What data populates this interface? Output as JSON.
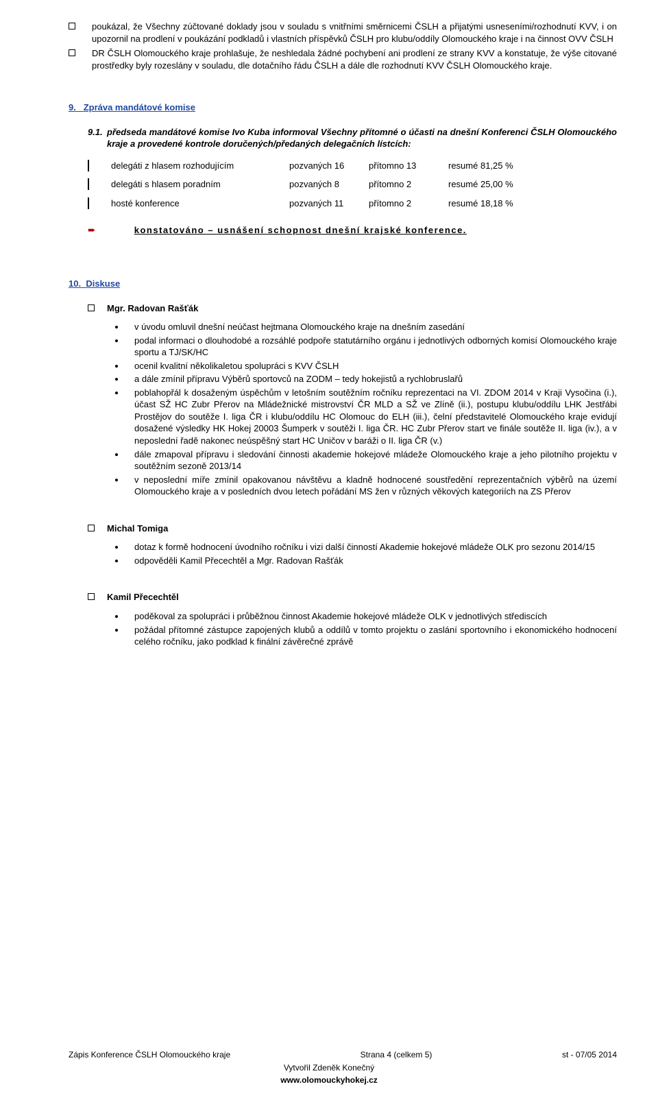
{
  "top_items": [
    "poukázal, že Všechny zúčtované doklady jsou v souladu s vnitřními směrnicemi ČSLH a přijatými usneseními/rozhodnutí KVV, i on upozornil na prodlení v poukázání podkladů i vlastních příspěvků ČSLH pro klubu/oddíly Olomouckého kraje i na činnost OVV ČSLH",
    "DR ČSLH Olomouckého kraje prohlašuje, že neshledala žádné pochybení ani prodlení ze strany KVV a konstatuje, že výše citované prostředky byly rozeslány v souladu, dle dotačního řádu ČSLH a dále dle rozhodnutí KVV ČSLH Olomouckého kraje."
  ],
  "section9": {
    "number": "9.",
    "title": "Zpráva mandátové komise",
    "item_number": "9.1.",
    "item_text": "předseda mandátové komise Ivo Kuba informoval Všechny přítomné o účasti na dnešní Konferenci ČSLH Olomouckého kraje a provedené kontrole doručených/předaných delegačních lístcích:",
    "rows": [
      {
        "label": "delegáti z hlasem rozhodujícím",
        "pozvanych": "pozvaných 16",
        "pritomno": "přítomno 13",
        "resume": "resumé  81,25 %"
      },
      {
        "label": "delegáti s hlasem poradním",
        "pozvanych": "pozvaných 8",
        "pritomno": "přítomno 2",
        "resume": "resumé 25,00 %"
      },
      {
        "label": "hosté konference",
        "pozvanych": "pozvaných 11",
        "pritomno": "přítomno 2",
        "resume": "resumé 18,18 %"
      }
    ],
    "arrow_text": "konstatováno – usnášení schopnost dnešní krajské konference."
  },
  "section10": {
    "number": "10.",
    "title": "Diskuse",
    "blocks": [
      {
        "name": "Mgr. Radovan Rašťák",
        "bullets": [
          "v úvodu omluvil dnešní neúčast hejtmana Olomouckého kraje na dnešním zasedání",
          "podal informaci o dlouhodobé a rozsáhlé podpoře statutárního orgánu i jednotlivých odborných komisí Olomouckého kraje sportu a TJ/SK/HC",
          "ocenil kvalitní několikaletou spolupráci s KVV ČSLH",
          "a dále zmínil přípravu Výběrů sportovců na ZODM – tedy hokejistů a rychlobruslařů",
          "poblahopřál k dosaženým úspěchům v letošním soutěžním ročníku reprezentaci na VI. ZDOM 2014 v Kraji Vysočina (i.), účast SŽ HC Zubr Přerov na Mládežnické mistrovství ČR MLD a SŽ ve Zlíně (ii.), postupu klubu/oddílu LHK Jestřábi Prostějov do soutěže I. liga ČR i klubu/oddílu HC Olomouc do ELH (iii.), čelní představitelé Olomouckého kraje evidují dosažené výsledky HK Hokej 20003 Šumperk v soutěži I. liga ČR. HC Zubr Přerov start ve finále soutěže II. liga (iv.), a v neposlední řadě nakonec neúspěšný start HC Uničov v baráži o II. liga ČR (v.)",
          "dále zmapoval přípravu i sledování činnosti akademie hokejové mládeže Olomouckého kraje a jeho pilotního projektu v soutěžním sezoně 2013/14",
          "v neposlední míře zmínil opakovanou návštěvu a kladně hodnocené soustředění reprezentačních výběrů na území Olomouckého kraje a v posledních dvou letech pořádání MS žen v různých věkových kategoriích na ZS Přerov"
        ]
      },
      {
        "name": "Michal Tomiga",
        "bullets": [
          "dotaz k formě hodnocení úvodního ročníku i vizi další činností Akademie hokejové mládeže OLK pro sezonu 2014/15",
          "odpověděli Kamil Přecechtěl a Mgr. Radovan Rašťák"
        ]
      },
      {
        "name": "Kamil Přecechtěl",
        "bullets": [
          "poděkoval za spolupráci i průběžnou činnost Akademie hokejové mládeže OLK v jednotlivých střediscích",
          "požádal přítomné zástupce zapojených klubů a oddílů v tomto projektu o zaslání sportovního i ekonomického hodnocení celého ročníku, jako podklad k finální závěrečné zprávě"
        ]
      }
    ]
  },
  "footer": {
    "left": "Zápis Konference ČSLH Olomouckého kraje",
    "mid1": "Strana 4 (celkem 5)",
    "mid2": "Vytvořil Zdeněk Konečný",
    "mid3": "www.olomouckyhokej.cz",
    "right": "st  - 07/05 2014"
  }
}
